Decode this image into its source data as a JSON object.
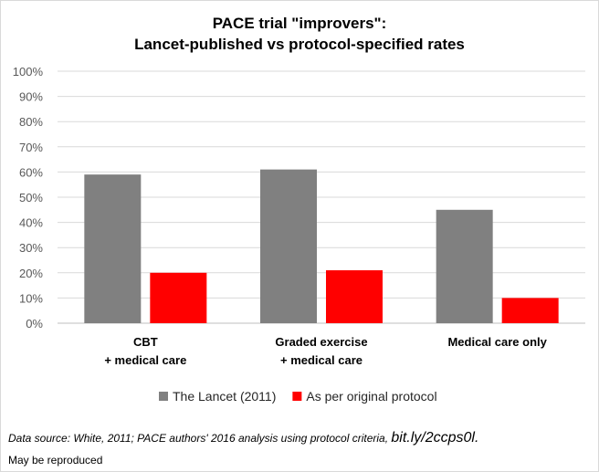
{
  "chart_data": {
    "type": "bar",
    "title_lines": [
      "PACE trial \"improvers\":",
      "Lancet-published vs protocol-specified rates"
    ],
    "categories": [
      [
        "CBT",
        "+ medical care"
      ],
      [
        "Graded exercise",
        "+ medical care"
      ],
      [
        "Medical care only"
      ]
    ],
    "series": [
      {
        "name": "The Lancet (2011)",
        "color": "#808080",
        "values": [
          59,
          61,
          45
        ]
      },
      {
        "name": "As per original protocol",
        "color": "#ff0000",
        "values": [
          20,
          21,
          10
        ]
      }
    ],
    "ylim": [
      0,
      100
    ],
    "yticks": [
      "0%",
      "10%",
      "20%",
      "30%",
      "40%",
      "50%",
      "60%",
      "70%",
      "80%",
      "90%",
      "100%"
    ],
    "grid": true,
    "legend_position": "bottom"
  },
  "footer": {
    "source_text": "Data source: White, 2011;  PACE authors' 2016 analysis using protocol criteria, ",
    "source_link": "bit.ly/2ccps0l.",
    "note": "May be reproduced"
  }
}
